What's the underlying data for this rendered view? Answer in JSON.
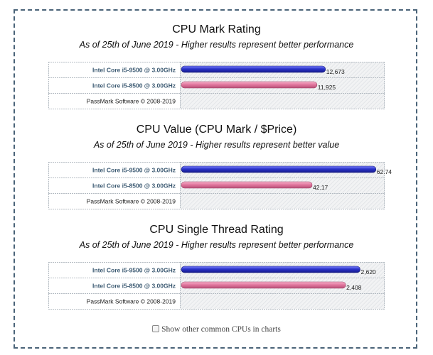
{
  "charts": [
    {
      "title": "CPU Mark Rating",
      "subtitle": "As of 25th of June 2019 - Higher results represent better performance",
      "credit": "PassMark Software © 2008-2019"
    },
    {
      "title": "CPU Value (CPU Mark / $Price)",
      "subtitle": "As of 25th of June 2019 - Higher results represent better value",
      "credit": "PassMark Software © 2008-2019"
    },
    {
      "title": "CPU Single Thread Rating",
      "subtitle": "As of 25th of June 2019 - Higher results represent better performance",
      "credit": "PassMark Software © 2008-2019"
    }
  ],
  "checkbox": {
    "label": "Show other common CPUs in charts",
    "checked": false
  },
  "colors": {
    "blue_bar": "#2b33c9",
    "pink_bar": "#e2789f",
    "border": "#4a6378"
  },
  "chart_data": [
    {
      "type": "bar",
      "orientation": "horizontal",
      "title": "CPU Mark Rating",
      "categories": [
        "Intel Core i5-9500 @ 3.00GHz",
        "Intel Core i5-8500 @ 3.00GHz"
      ],
      "values": [
        12673,
        11925
      ],
      "labels": [
        "12,673",
        "11,925"
      ],
      "colors": [
        "#2b33c9",
        "#e2789f"
      ],
      "xlim": [
        0,
        18000
      ]
    },
    {
      "type": "bar",
      "orientation": "horizontal",
      "title": "CPU Value (CPU Mark / $Price)",
      "categories": [
        "Intel Core i5-9500 @ 3.00GHz",
        "Intel Core i5-8500 @ 3.00GHz"
      ],
      "values": [
        62.74,
        42.17
      ],
      "labels": [
        "62.74",
        "42.17"
      ],
      "colors": [
        "#2b33c9",
        "#e2789f"
      ],
      "xlim": [
        0,
        66
      ]
    },
    {
      "type": "bar",
      "orientation": "horizontal",
      "title": "CPU Single Thread Rating",
      "categories": [
        "Intel Core i5-9500 @ 3.00GHz",
        "Intel Core i5-8500 @ 3.00GHz"
      ],
      "values": [
        2620,
        2408
      ],
      "labels": [
        "2,620",
        "2,408"
      ],
      "colors": [
        "#2b33c9",
        "#e2789f"
      ],
      "xlim": [
        0,
        3000
      ]
    }
  ]
}
